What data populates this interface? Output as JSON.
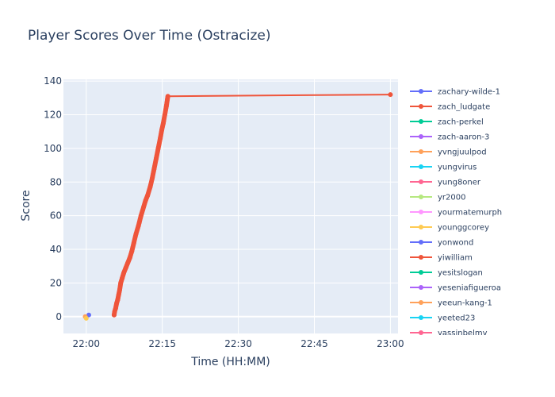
{
  "chart_data": {
    "type": "line",
    "title": "Player Scores Over Time (Ostracize)",
    "xlabel": "Time (HH:MM)",
    "ylabel": "Score",
    "x_tick_labels": [
      "22:00",
      "22:15",
      "22:30",
      "22:45",
      "23:00"
    ],
    "x_tick_minutes": [
      0,
      15,
      30,
      45,
      60
    ],
    "xlim_minutes": [
      -4.5,
      61.5
    ],
    "ylim": [
      -10,
      141
    ],
    "y_ticks": [
      0,
      20,
      40,
      60,
      80,
      100,
      120,
      140
    ],
    "grid": true,
    "legend_position": "right",
    "background": "#E5ECF6",
    "series": [
      {
        "name": "zachary-wilde-1",
        "color": "#636EFA",
        "x_minutes": [
          0.5
        ],
        "y": [
          1
        ]
      },
      {
        "name": "zach_ludgate",
        "color": "#EF553B",
        "x_minutes": [
          5.5,
          5.6,
          5.8,
          6.0,
          6.2,
          6.4,
          6.6,
          6.8,
          7.1,
          7.4,
          7.8,
          8.2,
          8.6,
          9.0,
          9.4,
          9.8,
          10.3,
          10.8,
          11.3,
          11.7,
          12.1,
          12.6,
          13.0,
          13.4,
          13.8,
          14.2,
          14.6,
          14.9,
          15.2,
          15.5,
          15.8,
          16.0,
          16.1,
          60.0
        ],
        "y": [
          1,
          3,
          5,
          8,
          10,
          13,
          16,
          20,
          23,
          26,
          29,
          32,
          35,
          39,
          44,
          49,
          54,
          60,
          65,
          69,
          72,
          77,
          82,
          88,
          94,
          100,
          106,
          111,
          115,
          120,
          125,
          129,
          131,
          132
        ]
      },
      {
        "name": "zach-perkel",
        "color": "#00CC96",
        "x_minutes": [],
        "y": []
      },
      {
        "name": "zach-aaron-3",
        "color": "#AB63FA",
        "x_minutes": [],
        "y": []
      },
      {
        "name": "yvngjuulpod",
        "color": "#FFA15A",
        "x_minutes": [
          -0.2
        ],
        "y": [
          0
        ]
      },
      {
        "name": "yungvirus",
        "color": "#19D3F3",
        "x_minutes": [],
        "y": []
      },
      {
        "name": "yung8oner",
        "color": "#FF6692",
        "x_minutes": [],
        "y": []
      },
      {
        "name": "yr2000",
        "color": "#B6E880",
        "x_minutes": [],
        "y": []
      },
      {
        "name": "yourmatemurph",
        "color": "#FF97FF",
        "x_minutes": [],
        "y": []
      },
      {
        "name": "younggcorey",
        "color": "#FECB52",
        "x_minutes": [
          0.0
        ],
        "y": [
          -1
        ]
      },
      {
        "name": "yonwond",
        "color": "#636EFA",
        "x_minutes": [],
        "y": []
      },
      {
        "name": "yiwilliam",
        "color": "#EF553B",
        "x_minutes": [],
        "y": []
      },
      {
        "name": "yesitslogan",
        "color": "#00CC96",
        "x_minutes": [],
        "y": []
      },
      {
        "name": "yeseniafigueroa",
        "color": "#AB63FA",
        "x_minutes": [],
        "y": []
      },
      {
        "name": "yeeun-kang-1",
        "color": "#FFA15A",
        "x_minutes": [],
        "y": []
      },
      {
        "name": "yeeted23",
        "color": "#19D3F3",
        "x_minutes": [],
        "y": []
      },
      {
        "name": "yassinbelmy",
        "color": "#FF6692",
        "x_minutes": [],
        "y": []
      }
    ]
  }
}
